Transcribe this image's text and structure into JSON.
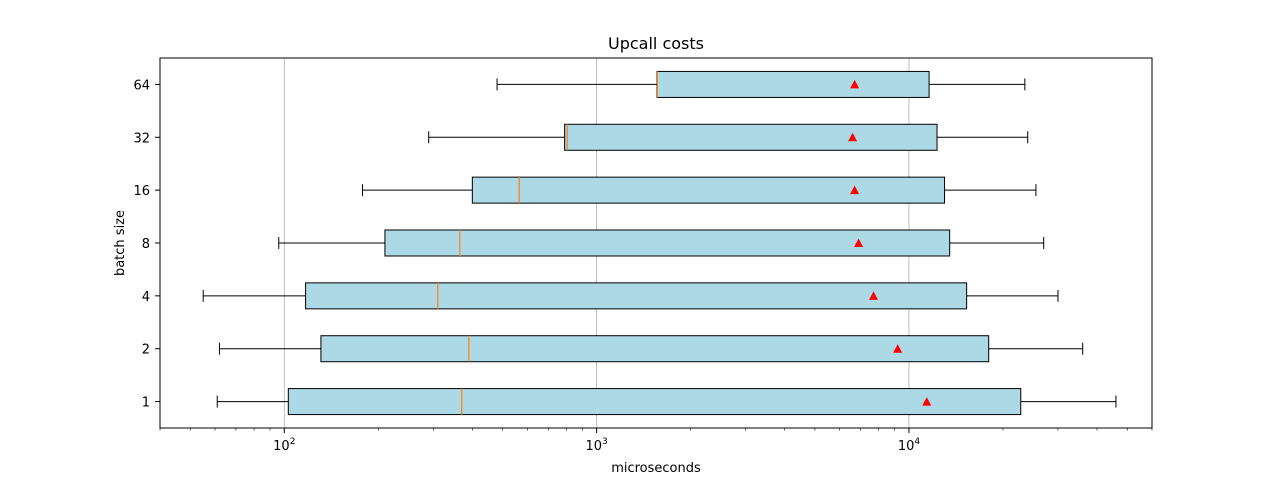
{
  "chart_data": {
    "type": "boxplot",
    "orientation": "horizontal",
    "title": "Upcall costs",
    "xlabel": "microseconds",
    "ylabel": "batch size",
    "xscale": "log",
    "xlim": [
      40,
      60000
    ],
    "grid": "x-major",
    "categories": [
      "1",
      "2",
      "4",
      "8",
      "16",
      "32",
      "64"
    ],
    "x_ticks": [
      {
        "value": 100,
        "base": "10",
        "exp": "2"
      },
      {
        "value": 1000,
        "base": "10",
        "exp": "3"
      },
      {
        "value": 10000,
        "base": "10",
        "exp": "4"
      }
    ],
    "boxes": [
      {
        "label": "1",
        "whisker_low": 61,
        "q1": 103,
        "median": 370,
        "q3": 22800,
        "whisker_high": 46000,
        "mean": 11400
      },
      {
        "label": "2",
        "whisker_low": 62,
        "q1": 131,
        "median": 390,
        "q3": 18000,
        "whisker_high": 36000,
        "mean": 9200
      },
      {
        "label": "4",
        "whisker_low": 55,
        "q1": 117,
        "median": 310,
        "q3": 15300,
        "whisker_high": 30000,
        "mean": 7700
      },
      {
        "label": "8",
        "whisker_low": 96,
        "q1": 210,
        "median": 365,
        "q3": 13500,
        "whisker_high": 27000,
        "mean": 6900
      },
      {
        "label": "16",
        "whisker_low": 178,
        "q1": 400,
        "median": 565,
        "q3": 13000,
        "whisker_high": 25500,
        "mean": 6700
      },
      {
        "label": "32",
        "whisker_low": 290,
        "q1": 790,
        "median": 805,
        "q3": 12300,
        "whisker_high": 24000,
        "mean": 6600
      },
      {
        "label": "64",
        "whisker_low": 480,
        "q1": 1560,
        "median": 1565,
        "q3": 11600,
        "whisker_high": 23500,
        "mean": 6700
      }
    ],
    "colors": {
      "box_fill": "#add8e6",
      "box_edge": "#000000",
      "median": "#ff7f0e",
      "mean_marker": "#ff0000",
      "grid": "#b0b0b0"
    }
  }
}
